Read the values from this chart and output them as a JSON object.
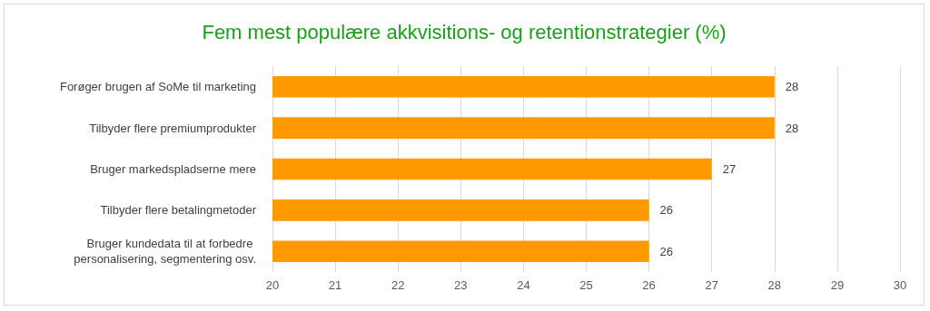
{
  "chart_data": {
    "type": "bar",
    "orientation": "horizontal",
    "title": "Fem mest populære akkvisitions- og retentionstrategier (%)",
    "categories": [
      "Forøger brugen af SoMe til marketing",
      "Tilbyder flere premiumprodukter",
      "Bruger markedspladserne mere",
      "Tilbyder flere betalingmetoder",
      "Bruger kundedata til at forbedre personalisering, segmentering osv."
    ],
    "values": [
      28,
      28,
      27,
      26,
      26
    ],
    "color": "#ff9900",
    "xlim": [
      20,
      30
    ],
    "xticks": [
      20,
      21,
      22,
      23,
      24,
      25,
      26,
      27,
      28,
      29,
      30
    ],
    "grid": "x",
    "data_labels": true
  }
}
